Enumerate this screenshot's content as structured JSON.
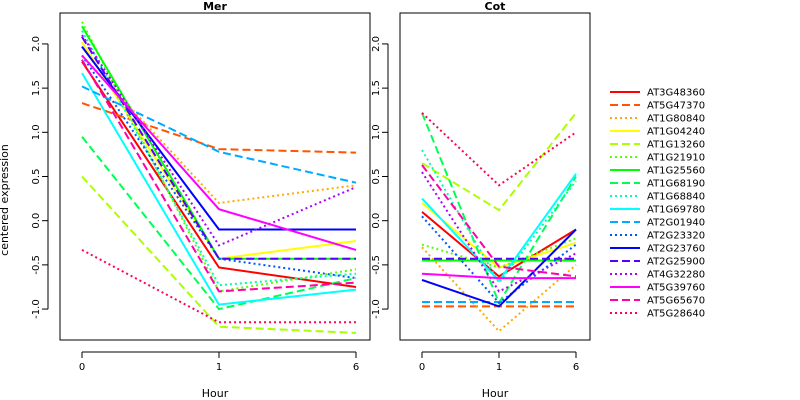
{
  "chart_data": {
    "type": "line",
    "ylabel": "centered expression",
    "xlabel": "Hour",
    "x": [
      "0",
      "1",
      "6"
    ],
    "ylim": [
      -1.35,
      2.35
    ],
    "yticks": [
      -1.0,
      -0.5,
      0.0,
      0.5,
      1.0,
      1.5,
      2.0
    ],
    "ytick_labels": [
      "-1.0",
      "-0.5",
      "0.0",
      "0.5",
      "1.0",
      "1.5",
      "2.0"
    ],
    "grid": false,
    "legend_position": "right",
    "panels": [
      {
        "title": "Mer",
        "series": [
          {
            "name": "AT3G48360",
            "values": [
              1.8,
              -0.53,
              -0.75
            ]
          },
          {
            "name": "AT5G47370",
            "values": [
              1.33,
              0.81,
              0.77
            ]
          },
          {
            "name": "AT1G80840",
            "values": [
              1.87,
              0.2,
              0.4
            ]
          },
          {
            "name": "AT1G04240",
            "values": [
              2.02,
              -0.43,
              -0.23
            ]
          },
          {
            "name": "AT1G13260",
            "values": [
              0.5,
              -1.2,
              -1.27
            ]
          },
          {
            "name": "AT1G21910",
            "values": [
              2.25,
              -0.8,
              -0.55
            ]
          },
          {
            "name": "AT1G25560",
            "values": [
              2.2,
              -0.43,
              -0.43
            ]
          },
          {
            "name": "AT1G68190",
            "values": [
              0.95,
              -1.0,
              -0.65
            ]
          },
          {
            "name": "AT1G68840",
            "values": [
              2.15,
              -0.73,
              -0.6
            ]
          },
          {
            "name": "AT1G69780",
            "values": [
              1.67,
              -0.95,
              -0.78
            ]
          },
          {
            "name": "AT2G01940",
            "values": [
              1.52,
              0.78,
              0.43
            ]
          },
          {
            "name": "AT2G23320",
            "values": [
              1.87,
              -0.43,
              -0.65
            ]
          },
          {
            "name": "AT2G23760",
            "values": [
              1.97,
              -0.1,
              -0.1
            ]
          },
          {
            "name": "AT2G25900",
            "values": [
              2.08,
              -0.43,
              -0.43
            ]
          },
          {
            "name": "AT4G32280",
            "values": [
              2.1,
              -0.28,
              0.38
            ]
          },
          {
            "name": "AT5G39760",
            "values": [
              1.87,
              0.13,
              -0.33
            ]
          },
          {
            "name": "AT5G65670",
            "values": [
              1.82,
              -0.8,
              -0.7
            ]
          },
          {
            "name": "AT5G28640",
            "values": [
              -0.33,
              -1.15,
              -1.15
            ]
          }
        ]
      },
      {
        "title": "Cot",
        "series": [
          {
            "name": "AT3G48360",
            "values": [
              0.1,
              -0.63,
              -0.1
            ]
          },
          {
            "name": "AT5G47370",
            "values": [
              -0.97,
              -0.97,
              -0.97
            ]
          },
          {
            "name": "AT1G80840",
            "values": [
              -0.3,
              -1.25,
              -0.5
            ]
          },
          {
            "name": "AT1G04240",
            "values": [
              0.2,
              -0.53,
              -0.25
            ]
          },
          {
            "name": "AT1G13260",
            "values": [
              0.65,
              0.12,
              1.22
            ]
          },
          {
            "name": "AT1G21910",
            "values": [
              -0.27,
              -0.53,
              -0.2
            ]
          },
          {
            "name": "AT1G25560",
            "values": [
              -0.45,
              -0.45,
              -0.45
            ]
          },
          {
            "name": "AT1G68190",
            "values": [
              1.22,
              -0.93,
              0.5
            ]
          },
          {
            "name": "AT1G68840",
            "values": [
              0.8,
              -0.7,
              0.45
            ]
          },
          {
            "name": "AT1G69780",
            "values": [
              0.25,
              -0.68,
              0.53
            ]
          },
          {
            "name": "AT2G01940",
            "values": [
              -0.92,
              -0.92,
              -0.92
            ]
          },
          {
            "name": "AT2G23320",
            "values": [
              0.05,
              -0.93,
              -0.27
            ]
          },
          {
            "name": "AT2G23760",
            "values": [
              -0.67,
              -0.97,
              -0.1
            ]
          },
          {
            "name": "AT2G25900",
            "values": [
              -0.43,
              -0.43,
              -0.43
            ]
          },
          {
            "name": "AT4G32280",
            "values": [
              0.55,
              -0.8,
              -0.37
            ]
          },
          {
            "name": "AT5G39760",
            "values": [
              -0.6,
              -0.65,
              -0.65
            ]
          },
          {
            "name": "AT5G65670",
            "values": [
              0.63,
              -0.52,
              -0.63
            ]
          },
          {
            "name": "AT5G28640",
            "values": [
              1.22,
              0.4,
              1.0
            ]
          }
        ]
      }
    ],
    "series_styles": [
      {
        "name": "AT3G48360",
        "color": "#FF0000",
        "dash": "solid"
      },
      {
        "name": "AT5G47370",
        "color": "#FF5500",
        "dash": "dashed"
      },
      {
        "name": "AT1G80840",
        "color": "#FFAA00",
        "dash": "dotted"
      },
      {
        "name": "AT1G04240",
        "color": "#FFFF00",
        "dash": "solid"
      },
      {
        "name": "AT1G13260",
        "color": "#AAFF00",
        "dash": "dashed"
      },
      {
        "name": "AT1G21910",
        "color": "#55FF00",
        "dash": "dotted"
      },
      {
        "name": "AT1G25560",
        "color": "#00FF00",
        "dash": "solid"
      },
      {
        "name": "AT1G68190",
        "color": "#00FF55",
        "dash": "dashed"
      },
      {
        "name": "AT1G68840",
        "color": "#00FFAA",
        "dash": "dotted"
      },
      {
        "name": "AT1G69780",
        "color": "#00FFFF",
        "dash": "solid"
      },
      {
        "name": "AT2G01940",
        "color": "#00AAFF",
        "dash": "dashed"
      },
      {
        "name": "AT2G23320",
        "color": "#0055FF",
        "dash": "dotted"
      },
      {
        "name": "AT2G23760",
        "color": "#0000FF",
        "dash": "solid"
      },
      {
        "name": "AT2G25900",
        "color": "#5500FF",
        "dash": "dashed"
      },
      {
        "name": "AT4G32280",
        "color": "#AA00FF",
        "dash": "dotted"
      },
      {
        "name": "AT5G39760",
        "color": "#FF00FF",
        "dash": "solid"
      },
      {
        "name": "AT5G65670",
        "color": "#FF00AA",
        "dash": "dashed"
      },
      {
        "name": "AT5G28640",
        "color": "#FF0055",
        "dash": "dotted"
      }
    ]
  }
}
